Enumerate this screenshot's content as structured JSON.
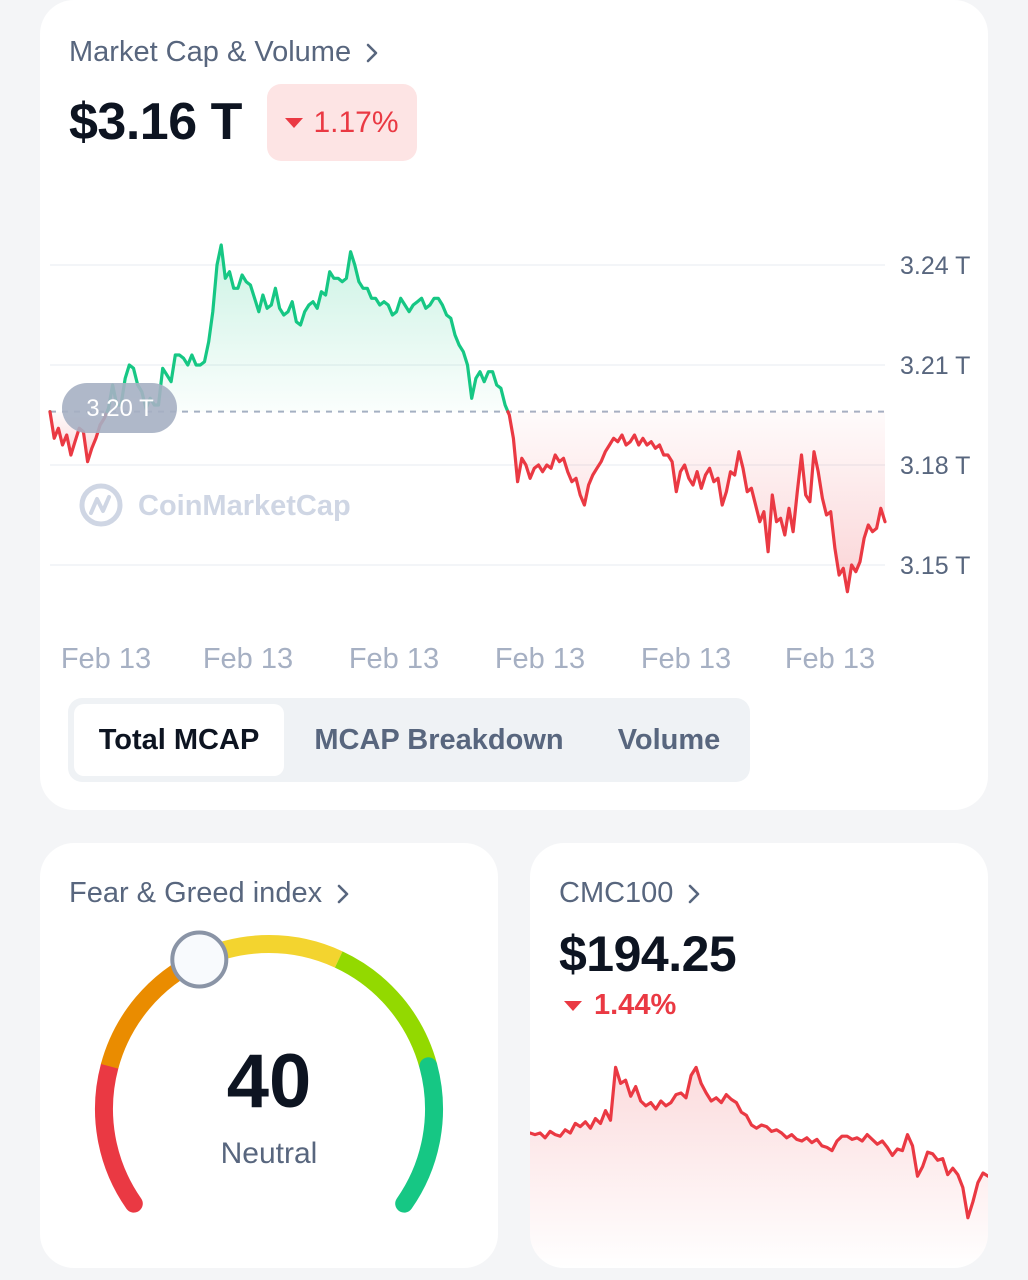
{
  "market_cap": {
    "title": "Market Cap & Volume",
    "value": "$3.16 T",
    "change": "1.17%",
    "change_direction": "down",
    "watermark": "CoinMarketCap",
    "reference_label": "3.20 T",
    "colors": {
      "up": "#16c784",
      "down": "#ea3943"
    },
    "tabs": [
      {
        "label": "Total MCAP",
        "active": true
      },
      {
        "label": "MCAP Breakdown",
        "active": false
      },
      {
        "label": "Volume",
        "active": false
      }
    ],
    "chart_data": {
      "type": "line",
      "y_ticks": [
        "3.24 T",
        "3.21 T",
        "3.18 T",
        "3.15 T"
      ],
      "x_ticks": [
        "Feb 13",
        "Feb 13",
        "Feb 13",
        "Feb 13",
        "Feb 13",
        "Feb 13"
      ],
      "ylim": [
        3.135,
        3.255
      ],
      "baseline": 3.196,
      "values": [
        3.196,
        3.188,
        3.191,
        3.186,
        3.189,
        3.183,
        3.187,
        3.191,
        3.19,
        3.181,
        3.185,
        3.188,
        3.192,
        3.194,
        3.197,
        3.204,
        3.198,
        3.198,
        3.206,
        3.21,
        3.209,
        3.204,
        3.202,
        3.197,
        3.2,
        3.198,
        3.198,
        3.209,
        3.207,
        3.205,
        3.213,
        3.213,
        3.212,
        3.21,
        3.213,
        3.21,
        3.21,
        3.211,
        3.217,
        3.226,
        3.24,
        3.246,
        3.236,
        3.238,
        3.233,
        3.233,
        3.237,
        3.235,
        3.234,
        3.23,
        3.226,
        3.231,
        3.227,
        3.228,
        3.233,
        3.227,
        3.225,
        3.226,
        3.229,
        3.223,
        3.222,
        3.226,
        3.228,
        3.229,
        3.227,
        3.232,
        3.231,
        3.238,
        3.236,
        3.236,
        3.235,
        3.236,
        3.244,
        3.24,
        3.235,
        3.233,
        3.233,
        3.23,
        3.23,
        3.228,
        3.229,
        3.228,
        3.225,
        3.226,
        3.23,
        3.228,
        3.226,
        3.228,
        3.229,
        3.23,
        3.227,
        3.228,
        3.23,
        3.23,
        3.228,
        3.225,
        3.224,
        3.219,
        3.216,
        3.214,
        3.21,
        3.2,
        3.206,
        3.208,
        3.205,
        3.208,
        3.208,
        3.204,
        3.203,
        3.198,
        3.195,
        3.188,
        3.175,
        3.182,
        3.18,
        3.176,
        3.179,
        3.18,
        3.178,
        3.18,
        3.179,
        3.183,
        3.181,
        3.182,
        3.178,
        3.175,
        3.176,
        3.171,
        3.168,
        3.174,
        3.177,
        3.179,
        3.181,
        3.184,
        3.186,
        3.188,
        3.187,
        3.189,
        3.186,
        3.187,
        3.189,
        3.186,
        3.188,
        3.186,
        3.187,
        3.185,
        3.186,
        3.183,
        3.183,
        3.181,
        3.172,
        3.178,
        3.18,
        3.176,
        3.174,
        3.178,
        3.173,
        3.177,
        3.179,
        3.175,
        3.176,
        3.168,
        3.172,
        3.178,
        3.177,
        3.184,
        3.179,
        3.172,
        3.173,
        3.168,
        3.163,
        3.166,
        3.154,
        3.171,
        3.163,
        3.164,
        3.159,
        3.167,
        3.16,
        3.172,
        3.183,
        3.171,
        3.169,
        3.184,
        3.178,
        3.17,
        3.165,
        3.166,
        3.155,
        3.147,
        3.149,
        3.142,
        3.15,
        3.148,
        3.151,
        3.158,
        3.162,
        3.16,
        3.161,
        3.167,
        3.163
      ]
    }
  },
  "fear_greed": {
    "title": "Fear & Greed index",
    "value": "40",
    "label": "Neutral",
    "score": 40,
    "segment_colors": [
      "#ea3943",
      "#ea8c00",
      "#f3d42f",
      "#93d900",
      "#16c784"
    ]
  },
  "cmc100": {
    "title": "CMC100",
    "value": "$194.25",
    "change": "1.44%",
    "change_direction": "down",
    "chart_data": {
      "type": "area",
      "ylim": [
        0,
        100
      ],
      "values": [
        55,
        54,
        55,
        52,
        56,
        54,
        53,
        57,
        55,
        61,
        59,
        62,
        58,
        64,
        61,
        69,
        63,
        96,
        86,
        88,
        78,
        84,
        75,
        72,
        74,
        70,
        75,
        72,
        74,
        79,
        80,
        77,
        91,
        96,
        86,
        80,
        75,
        77,
        74,
        79,
        76,
        74,
        68,
        66,
        60,
        58,
        60,
        59,
        56,
        57,
        55,
        52,
        54,
        51,
        50,
        52,
        49,
        51,
        47,
        46,
        44,
        50,
        53,
        53,
        51,
        52,
        50,
        54,
        51,
        48,
        50,
        46,
        41,
        45,
        44,
        54,
        47,
        28,
        34,
        43,
        42,
        38,
        39,
        29,
        33,
        29,
        21,
        2,
        12,
        24,
        30,
        28
      ]
    }
  }
}
